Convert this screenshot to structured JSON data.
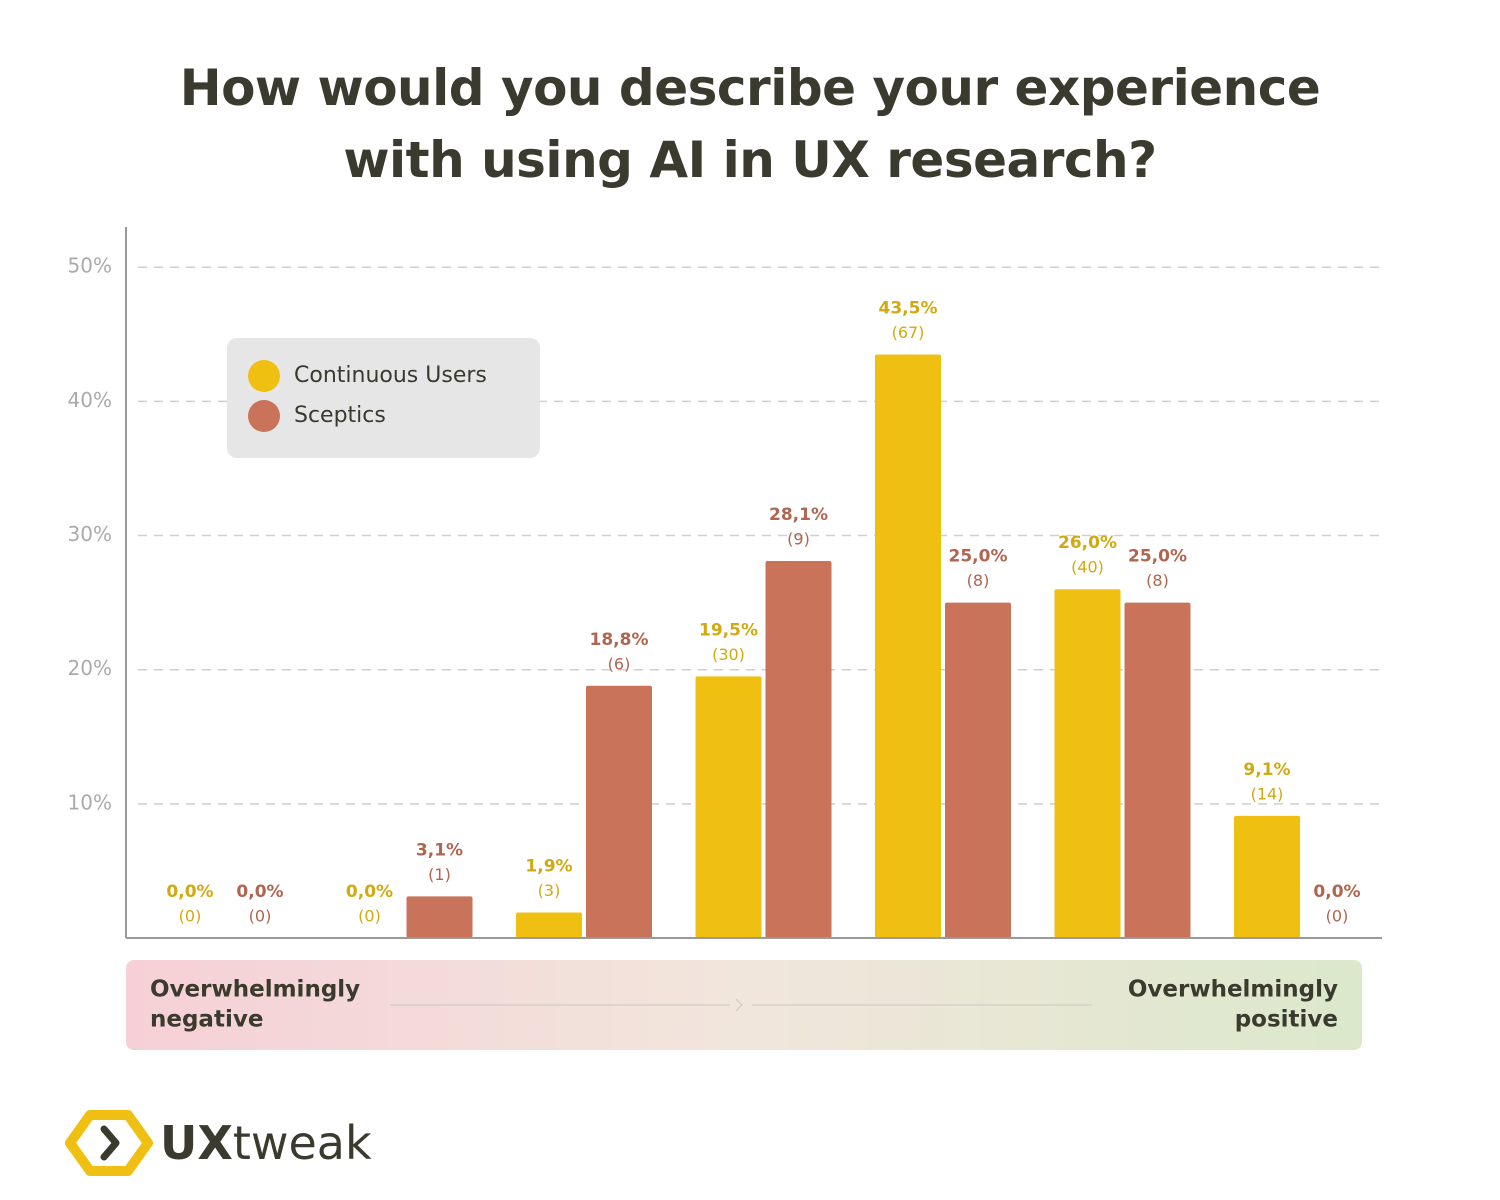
{
  "chart_data": {
    "type": "bar",
    "title": "How would you describe your experience with using AI in UX research?",
    "categories": [
      null,
      null,
      null,
      null,
      null,
      null,
      null
    ],
    "series": [
      {
        "name": "Continuous Users",
        "color": "#efc012",
        "values": [
          0,
          0,
          1.9,
          19.5,
          43.5,
          26.0,
          9.1
        ],
        "value_labels": [
          "0,0%",
          "0,0%",
          "1,9%",
          "19,5%",
          "43,5%",
          "26,0%",
          "9,1%"
        ],
        "count_labels": [
          "(0)",
          "(0)",
          "(3)",
          "(30)",
          "(67)",
          "(40)",
          "(14)"
        ]
      },
      {
        "name": "Sceptics",
        "color": "#c8735a",
        "values": [
          0,
          3.1,
          18.8,
          28.1,
          25.0,
          25.0,
          0
        ],
        "value_labels": [
          "0,0%",
          "3,1%",
          "18,8%",
          "28,1%",
          "25,0%",
          "25,0%",
          "0,0%"
        ],
        "count_labels": [
          "(0)",
          "(1)",
          "(6)",
          "(9)",
          "(8)",
          "(8)",
          "(0)"
        ]
      }
    ],
    "ylim": [
      0,
      53
    ],
    "yticks": [
      {
        "value": 10,
        "label": "10%"
      },
      {
        "value": 20,
        "label": "20%"
      },
      {
        "value": 30,
        "label": "30%"
      },
      {
        "value": 40,
        "label": "40%"
      },
      {
        "value": 50,
        "label": "50%"
      }
    ],
    "grid": true,
    "legend": "upper-left",
    "scale_start": [
      "Overwhelmingly",
      "negative"
    ],
    "scale_end": [
      "Overwhelmingly",
      "positive"
    ],
    "brand": [
      "UX",
      "tweak"
    ]
  }
}
